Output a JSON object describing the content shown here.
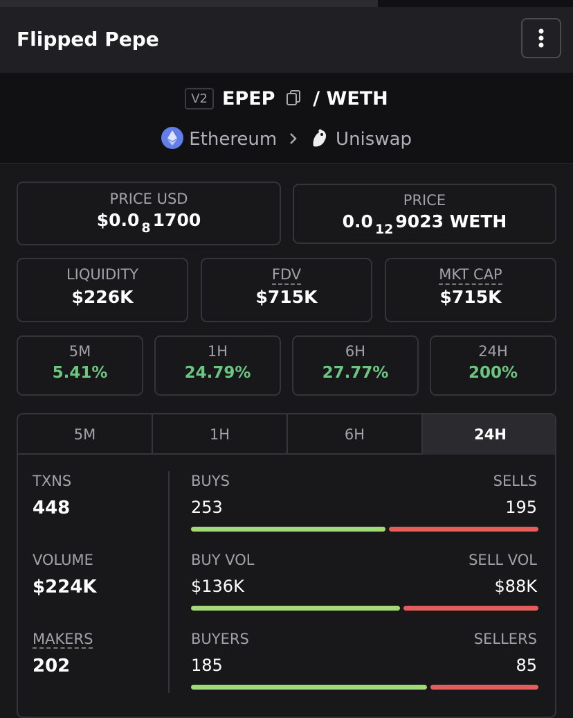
{
  "header": {
    "title": "Flipped Pepe"
  },
  "pair": {
    "version": "V2",
    "base": "EPEP",
    "separator": "/",
    "quote": "WETH",
    "chain": "Ethereum",
    "dex": "Uniswap"
  },
  "price_usd": {
    "label": "PRICE USD",
    "prefix": "$0.0",
    "zeros": "8",
    "digits": "1700"
  },
  "price": {
    "label": "PRICE",
    "prefix": "0.0",
    "zeros": "12",
    "digits": "9023 WETH"
  },
  "stats": [
    {
      "label": "LIQUIDITY",
      "value": "$226K"
    },
    {
      "label": "FDV",
      "value": "$715K"
    },
    {
      "label": "MKT CAP",
      "value": "$715K"
    }
  ],
  "changes": [
    {
      "label": "5M",
      "value": "5.41%"
    },
    {
      "label": "1H",
      "value": "24.79%"
    },
    {
      "label": "6H",
      "value": "27.77%"
    },
    {
      "label": "24H",
      "value": "200%"
    }
  ],
  "tabs": [
    "5M",
    "1H",
    "6H",
    "24H"
  ],
  "active_tab": 3,
  "summary": [
    {
      "label": "TXNS",
      "value": "448"
    },
    {
      "label": "VOLUME",
      "value": "$224K"
    },
    {
      "label": "MAKERS",
      "value": "202"
    }
  ],
  "rows": [
    {
      "left_name": "BUYS",
      "right_name": "SELLS",
      "left": 253,
      "right": 195
    },
    {
      "left_name": "BUY VOL",
      "right_name": "SELL VOL",
      "left": 136000,
      "right": 88000,
      "left_label": "$136K",
      "right_label": "$88K"
    },
    {
      "left_name": "BUYERS",
      "right_name": "SELLERS",
      "left": 185,
      "right": 85
    }
  ]
}
